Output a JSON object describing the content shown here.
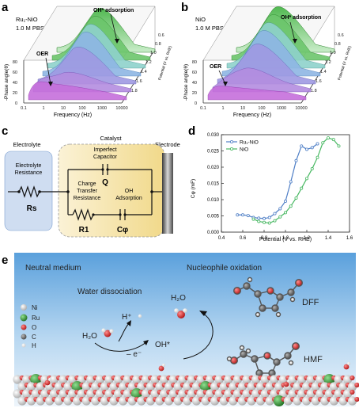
{
  "panels": {
    "a": {
      "letter": "a",
      "sample_label": "Ru₁-NiO",
      "electrolyte": "1.0 M PBS",
      "peak_label": "OH* adsorption",
      "low_label": "OER",
      "x_label": "Frequency (Hz)",
      "y_label": "-Phase angle(θ)",
      "z_label": "Potential (V vs. RHE)",
      "x_ticks": [
        "0.1",
        "1",
        "10",
        "100",
        "1000",
        "10000"
      ],
      "y_ticks": [
        "0",
        "20",
        "40",
        "60",
        "80"
      ],
      "z_ticks": [
        "0.6",
        "0.8",
        "1.0",
        "1.2",
        "1.4",
        "1.6",
        "1.8"
      ]
    },
    "b": {
      "letter": "b",
      "sample_label": "NiO",
      "electrolyte": "1.0 M PBS",
      "peak_label": "OH* adsorption",
      "low_label": "OER",
      "x_label": "Frequency (Hz)",
      "y_label": "-Phase angle(θ)",
      "z_label": "Potential (V vs. RHE)",
      "x_ticks": [
        "0.1",
        "1",
        "10",
        "100",
        "1000",
        "10000"
      ],
      "y_ticks": [
        "0",
        "20",
        "40",
        "60",
        "80"
      ],
      "z_ticks": [
        "0.6",
        "0.8",
        "1.0",
        "1.2",
        "1.4",
        "1.6",
        "1.8"
      ]
    },
    "c": {
      "letter": "c",
      "electrolyte_title": "Electrolyte",
      "catalyst_title": "Catalyst",
      "electrode_title": "Electrode",
      "rs_label_1": "Electrolyte",
      "rs_label_2": "Resistance",
      "rs_symbol": "Rs",
      "q_label_1": "Imperfect",
      "q_label_2": "Capacitor",
      "q_symbol": "Q",
      "r1_label_1": "Charge",
      "r1_label_2": "Transfer",
      "r1_label_3": "Resistance",
      "r1_symbol": "R1",
      "cphi_label_1": "OH",
      "cphi_label_2": "Adsorption",
      "cphi_symbol": "Cφ"
    },
    "d": {
      "letter": "d",
      "y_label": "Cφ (mF)",
      "x_label": "Potential (V vs. RHE)"
    },
    "e": {
      "letter": "e",
      "neutral": "Neutral medium",
      "nucleophile": "Nucleophile oxidation",
      "water_dissociation": "Water dissociation",
      "h2o_left": "H₂O",
      "h2o_top": "H₂O",
      "h_plus": "H⁺",
      "minus_e": "– e⁻",
      "oh_star": "OH*",
      "dff": "DFF",
      "hmf": "HMF",
      "legend": [
        {
          "label": "Ni",
          "color": "#d9d9d9"
        },
        {
          "label": "Ru",
          "color": "#2e8b2e"
        },
        {
          "label": "O",
          "color": "#d42020"
        },
        {
          "label": "C",
          "color": "#6e6e6e"
        },
        {
          "label": "H",
          "color": "#f4f4f4"
        }
      ]
    }
  },
  "chart_data": {
    "type": "line",
    "xlabel": "Potential (V vs. RHE)",
    "ylabel": "Cφ (mF)",
    "xlim": [
      0.4,
      1.6
    ],
    "ylim": [
      0.0,
      0.03
    ],
    "x_ticks": [
      0.4,
      0.6,
      0.8,
      1.0,
      1.2,
      1.4,
      1.6
    ],
    "y_ticks": [
      0.0,
      0.005,
      0.01,
      0.015,
      0.02,
      0.025,
      0.03
    ],
    "legend_position": "top-left",
    "series": [
      {
        "name": "Ru₁-NiO",
        "color": "#4f7fc6",
        "x": [
          0.55,
          0.6,
          0.65,
          0.7,
          0.75,
          0.8,
          0.85,
          0.9,
          0.95,
          1.0,
          1.05,
          1.1,
          1.15,
          1.2,
          1.25,
          1.3
        ],
        "y": [
          0.0053,
          0.0053,
          0.0051,
          0.0045,
          0.0043,
          0.0042,
          0.0045,
          0.0057,
          0.0072,
          0.0095,
          0.0155,
          0.022,
          0.0265,
          0.0255,
          0.026,
          0.0272
        ]
      },
      {
        "name": "NiO",
        "color": "#48b862",
        "x": [
          0.7,
          0.75,
          0.8,
          0.85,
          0.9,
          0.95,
          1.0,
          1.05,
          1.1,
          1.15,
          1.2,
          1.25,
          1.3,
          1.35,
          1.4,
          1.45,
          1.5
        ],
        "y": [
          0.004,
          0.0033,
          0.003,
          0.0028,
          0.0035,
          0.0047,
          0.006,
          0.008,
          0.0105,
          0.0135,
          0.0165,
          0.0195,
          0.023,
          0.0275,
          0.029,
          0.0285,
          0.0265
        ]
      }
    ]
  }
}
